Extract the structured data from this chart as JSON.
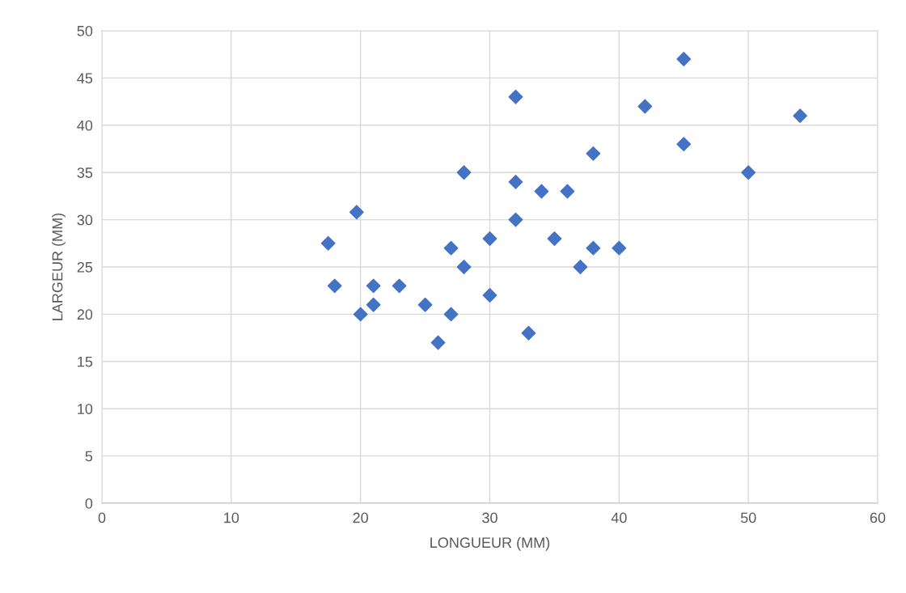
{
  "chart_data": {
    "type": "scatter",
    "xlabel": "LONGUEUR (MM)",
    "ylabel": "LARGEUR (MM)",
    "x": [
      17.5,
      18,
      19.7,
      20,
      21,
      21,
      23,
      25,
      26,
      27,
      27,
      28,
      28,
      30,
      30,
      32,
      32,
      32,
      33,
      34,
      35,
      36,
      37,
      38,
      38,
      40,
      42,
      45,
      45,
      50,
      54
    ],
    "series": [
      {
        "color": "#4472c4",
        "values": [
          27.5,
          23,
          30.8,
          20,
          23,
          21,
          23,
          21,
          17,
          27,
          20,
          35,
          25,
          28,
          22,
          43,
          34,
          30,
          18,
          33,
          28,
          33,
          25,
          37,
          27,
          27,
          42,
          47,
          38,
          35,
          41
        ]
      }
    ],
    "xlim": [
      0,
      60
    ],
    "xticks": [
      0,
      10,
      20,
      30,
      40,
      50,
      60
    ],
    "ylim": [
      0,
      50
    ],
    "yticks": [
      0,
      5,
      10,
      15,
      20,
      25,
      30,
      35,
      40,
      45,
      50
    ],
    "grid": true,
    "marker": "diamond",
    "legend": false
  }
}
